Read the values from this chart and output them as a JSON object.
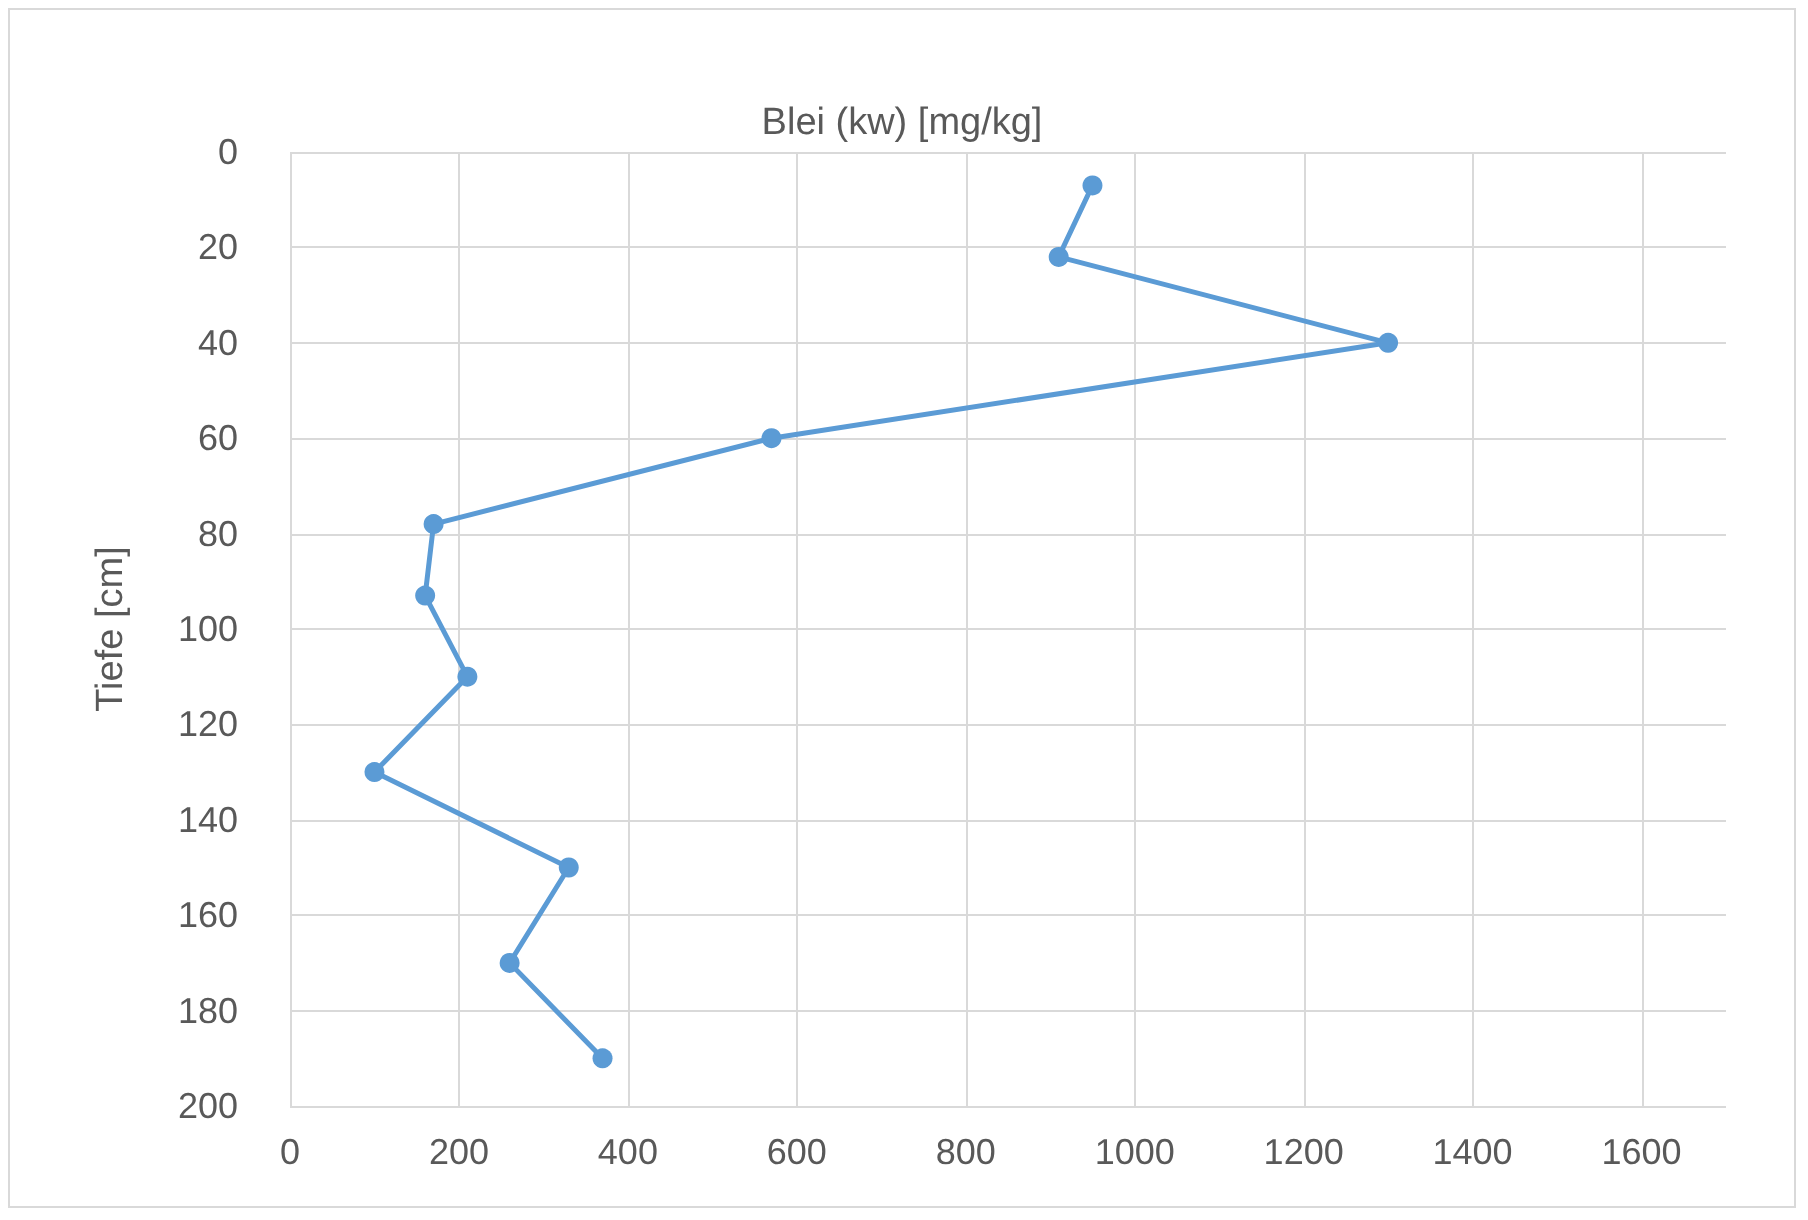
{
  "chart_data": {
    "type": "line",
    "title": "Blei (kw) [mg/kg]",
    "ylabel": "Tiefe [cm]",
    "x": [
      950,
      910,
      1300,
      570,
      170,
      160,
      210,
      100,
      330,
      260,
      370
    ],
    "values": [
      7,
      22,
      40,
      60,
      78,
      93,
      110,
      130,
      150,
      170,
      190
    ],
    "color": "#5b9bd5",
    "xlim": [
      0,
      1700
    ],
    "xticks": [
      0,
      200,
      400,
      600,
      800,
      1000,
      1200,
      1400,
      1600
    ],
    "ylim": [
      200,
      0
    ],
    "yticks": [
      0,
      20,
      40,
      60,
      80,
      100,
      120,
      140,
      160,
      180,
      200
    ],
    "grid": true,
    "marker": "circle",
    "line_style": "solid"
  }
}
